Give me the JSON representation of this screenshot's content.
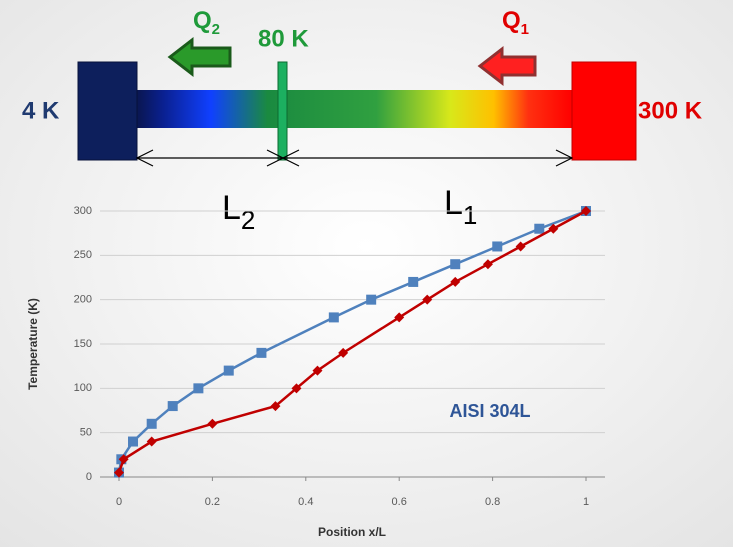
{
  "diagram": {
    "cold_label": "4 K",
    "hot_label": "300 K",
    "mid_label": "80 K",
    "q2": {
      "main": "Q",
      "sub": "2"
    },
    "q1": {
      "main": "Q",
      "sub": "1"
    },
    "l2": {
      "main": "L",
      "sub": "2"
    },
    "l1": {
      "main": "L",
      "sub": "1"
    }
  },
  "chart_data": {
    "type": "line",
    "xlabel": "Position x/L",
    "ylabel": "Temperature (K)",
    "annotation": "AISI 304L",
    "xlim": [
      0,
      1
    ],
    "ylim": [
      0,
      300
    ],
    "xticks": [
      0,
      0.2,
      0.4,
      0.6,
      0.8,
      1
    ],
    "yticks": [
      0,
      50,
      100,
      150,
      200,
      250,
      300
    ],
    "grid": true,
    "series": [
      {
        "color": "#4f81bd",
        "marker": "square",
        "x": [
          0,
          0.005,
          0.03,
          0.07,
          0.115,
          0.17,
          0.235,
          0.305,
          0.46,
          0.54,
          0.63,
          0.72,
          0.81,
          0.9,
          1
        ],
        "values": [
          5,
          20,
          40,
          60,
          80,
          100,
          120,
          140,
          180,
          200,
          220,
          240,
          260,
          280,
          300
        ]
      },
      {
        "color": "#c00000",
        "marker": "diamond",
        "x": [
          0,
          0.01,
          0.07,
          0.2,
          0.335,
          0.38,
          0.425,
          0.48,
          0.6,
          0.66,
          0.72,
          0.79,
          0.86,
          0.93,
          1
        ],
        "values": [
          5,
          20,
          40,
          60,
          80,
          100,
          120,
          140,
          180,
          200,
          220,
          240,
          260,
          280,
          300
        ]
      }
    ]
  }
}
